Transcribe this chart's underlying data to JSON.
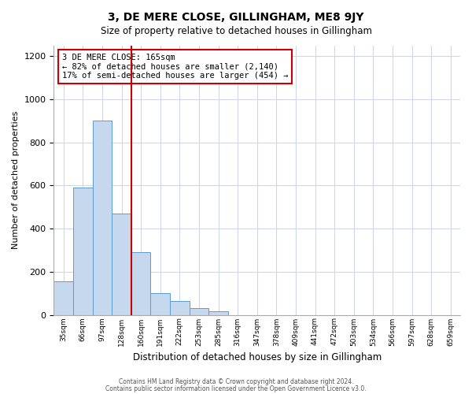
{
  "title": "3, DE MERE CLOSE, GILLINGHAM, ME8 9JY",
  "subtitle": "Size of property relative to detached houses in Gillingham",
  "xlabel": "Distribution of detached houses by size in Gillingham",
  "ylabel": "Number of detached properties",
  "bin_labels": [
    "35sqm",
    "66sqm",
    "97sqm",
    "128sqm",
    "160sqm",
    "191sqm",
    "222sqm",
    "253sqm",
    "285sqm",
    "316sqm",
    "347sqm",
    "378sqm",
    "409sqm",
    "441sqm",
    "472sqm",
    "503sqm",
    "534sqm",
    "566sqm",
    "597sqm",
    "628sqm",
    "659sqm"
  ],
  "bar_values": [
    155,
    590,
    900,
    470,
    290,
    100,
    65,
    30,
    15,
    0,
    0,
    0,
    0,
    0,
    0,
    0,
    0,
    0,
    0,
    0,
    0
  ],
  "bar_color": "#c5d8ed",
  "bar_edge_color": "#5b9bd5",
  "vline_x": 4,
  "vline_color": "#cc0000",
  "ylim": [
    0,
    1250
  ],
  "yticks": [
    0,
    200,
    400,
    600,
    800,
    1000,
    1200
  ],
  "annotation_title": "3 DE MERE CLOSE: 165sqm",
  "annotation_line1": "← 82% of detached houses are smaller (2,140)",
  "annotation_line2": "17% of semi-detached houses are larger (454) →",
  "annotation_box_color": "#cc0000",
  "footer_line1": "Contains HM Land Registry data © Crown copyright and database right 2024.",
  "footer_line2": "Contains public sector information licensed under the Open Government Licence v3.0.",
  "background_color": "#ffffff",
  "grid_color": "#d0d8e8"
}
